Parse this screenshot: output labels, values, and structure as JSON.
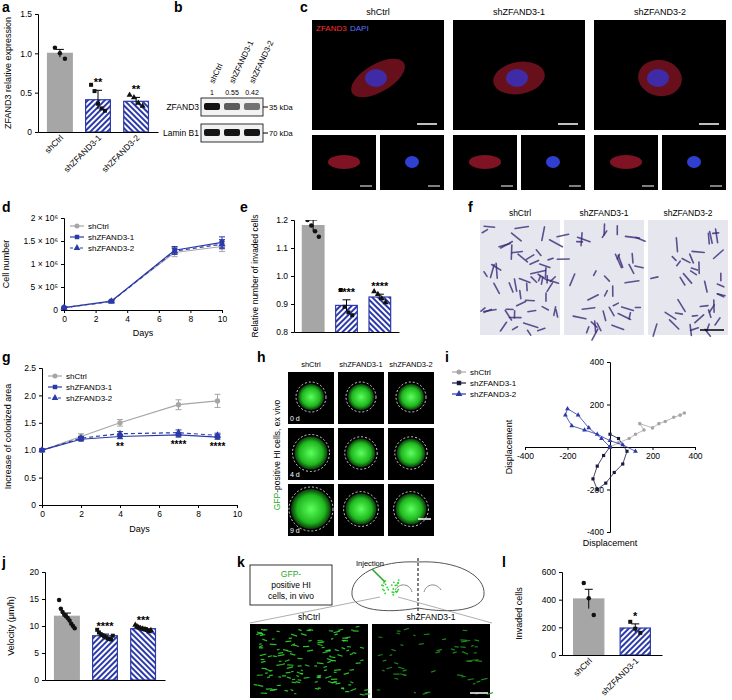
{
  "chart_data": [
    {
      "type": "bar",
      "title": "a",
      "ylabel": "ZFAND3 relative expression",
      "categories": [
        "shCtrl",
        "shZFAND3-1",
        "shZFAND3-2"
      ],
      "values": [
        1.0,
        0.41,
        0.39
      ],
      "errors": [
        0.05,
        0.12,
        0.05
      ],
      "points": [
        [
          1.07,
          1.0,
          0.93
        ],
        [
          0.6,
          0.52,
          0.36,
          0.3,
          0.27
        ],
        [
          0.47,
          0.44,
          0.37,
          0.33
        ]
      ],
      "annotations": [
        null,
        "**",
        "**"
      ],
      "colors": [
        "#a6a6a6",
        "#2b3aa8",
        "#2b3aa8"
      ],
      "ylim": [
        0,
        1.5
      ],
      "yticks": [
        0,
        0.5,
        {
          "value": 1,
          "label": "1.0"
        },
        1.5
      ]
    },
    {
      "type": "line",
      "title": "d",
      "xlabel": "Days",
      "ylabel": "Cell number",
      "x": [
        0,
        3,
        7,
        10
      ],
      "series": [
        {
          "name": "shCtrl",
          "color": "#a6a6a6",
          "marker": "circle",
          "line_style": "solid",
          "values": [
            50000,
            200000,
            1250000,
            1380000
          ],
          "errors": [
            10000,
            20000,
            90000,
            110000
          ]
        },
        {
          "name": "shZFAND3-1",
          "color": "#2b3aa8",
          "marker": "square",
          "line_style": "solid",
          "values": [
            50000,
            190000,
            1300000,
            1470000
          ],
          "errors": [
            10000,
            15000,
            80000,
            120000
          ]
        },
        {
          "name": "shZFAND3-2",
          "color": "#2b3aa8",
          "marker": "triangle",
          "line_style": "dashed",
          "values": [
            50000,
            185000,
            1280000,
            1430000
          ],
          "errors": [
            8000,
            15000,
            70000,
            100000
          ]
        }
      ],
      "xlim": [
        0,
        10
      ],
      "xticks": [
        0,
        2,
        4,
        6,
        8,
        10
      ],
      "ylim": [
        0,
        2000000
      ],
      "yticks": [
        0,
        {
          "value": 500000,
          "label": "5 × 10⁵"
        },
        {
          "value": 1000000,
          "label": "1 × 10⁶"
        },
        {
          "value": 1500000,
          "label": "1.5 × 10⁶"
        },
        {
          "value": 2000000,
          "label": "2 × 10⁶"
        }
      ],
      "legend": "upper left"
    },
    {
      "type": "bar",
      "title": "e",
      "ylabel": "Relative number of invaded cells",
      "categories": [
        null,
        null,
        null
      ],
      "values": [
        1.18,
        0.895,
        0.925
      ],
      "errors": [
        0.02,
        0.02,
        0.01
      ],
      "points": [
        [
          1.2,
          1.18,
          1.16,
          1.14
        ],
        [
          0.95,
          0.89,
          0.87,
          0.86
        ],
        [
          0.945,
          0.935,
          0.92,
          0.905
        ]
      ],
      "annotations": [
        null,
        "****",
        "****"
      ],
      "colors": [
        "#a6a6a6",
        "#2b3aa8",
        "#2b3aa8"
      ],
      "ylim": [
        0.8,
        1.2
      ],
      "yticks": [
        0.8,
        0.9,
        {
          "value": 1,
          "label": "1.0"
        },
        1.1,
        1.2
      ]
    },
    {
      "type": "line",
      "title": "g",
      "xlabel": "Days",
      "ylabel": "Increase of colonized area",
      "x": [
        0,
        2,
        4,
        7,
        9
      ],
      "series": [
        {
          "name": "shCtrl",
          "color": "#a6a6a6",
          "marker": "circle",
          "line_style": "solid",
          "values": [
            1,
            1.25,
            1.5,
            1.83,
            1.9
          ],
          "errors": [
            0.02,
            0.05,
            0.06,
            0.09,
            0.12
          ]
        },
        {
          "name": "shZFAND3-1",
          "color": "#2b3aa8",
          "marker": "square",
          "line_style": "solid",
          "values": [
            1,
            1.2,
            1.25,
            1.28,
            1.24
          ],
          "errors": [
            0.02,
            0.03,
            0.04,
            0.04,
            0.04
          ]
        },
        {
          "name": "shZFAND3-2",
          "color": "#2b3aa8",
          "marker": "triangle",
          "line_style": "dashed",
          "values": [
            1,
            1.22,
            1.3,
            1.32,
            1.27
          ],
          "errors": [
            0.02,
            0.03,
            0.04,
            0.05,
            0.04
          ]
        }
      ],
      "xlim": [
        0,
        10
      ],
      "xticks": [
        0,
        2,
        4,
        6,
        8,
        10
      ],
      "ylim": [
        0,
        2.5
      ],
      "yticks": [
        0,
        0.5,
        {
          "value": 1,
          "label": "1.0"
        },
        1.5,
        {
          "value": 2,
          "label": "2.0"
        },
        2.5
      ],
      "annotations": [
        {
          "x": 4,
          "text": "**"
        },
        {
          "x": 7,
          "text": "****"
        },
        {
          "x": 9,
          "text": "****"
        }
      ],
      "legend": "upper left"
    },
    {
      "type": "line",
      "title": "i",
      "xlabel": "Displacement",
      "ylabel": "Displacement",
      "series": [
        {
          "name": "shCtrl",
          "color": "#a6a6a6",
          "marker": "circle",
          "line_style": "solid",
          "x": [
            0,
            40,
            90,
            120,
            160,
            140,
            200,
            230,
            260,
            300,
            330,
            350
          ],
          "values": [
            0,
            20,
            40,
            60,
            80,
            110,
            90,
            110,
            120,
            140,
            150,
            160
          ]
        },
        {
          "name": "shZFAND3-1",
          "color": "#1a1a40",
          "marker": "square",
          "line_style": "solid",
          "x": [
            0,
            -30,
            -60,
            -80,
            -60,
            -20,
            20,
            60,
            80,
            40,
            0
          ],
          "values": [
            0,
            -40,
            -90,
            -150,
            -200,
            -170,
            -120,
            -80,
            -20,
            40,
            60
          ]
        },
        {
          "name": "shZFAND3-2",
          "color": "#2b3aa8",
          "marker": "triangle",
          "line_style": "solid",
          "x": [
            0,
            -40,
            -100,
            -150,
            -200,
            -210,
            -180,
            -120,
            -60,
            0,
            60,
            120
          ],
          "values": [
            0,
            40,
            90,
            150,
            180,
            150,
            100,
            80,
            60,
            30,
            10,
            -20
          ]
        }
      ],
      "xlim": [
        -400,
        400
      ],
      "xticks": [
        -400,
        -200,
        200,
        400
      ],
      "ylim": [
        -400,
        400
      ],
      "yticks": [
        -400,
        -200,
        200,
        400
      ],
      "legend": "upper left"
    },
    {
      "type": "bar",
      "title": "j",
      "ylabel": "Velocity (μm/h)",
      "categories": [
        null,
        null,
        null
      ],
      "values": [
        11.8,
        8.2,
        9.5
      ],
      "errors": [
        0.6,
        0.3,
        0.2
      ],
      "points": [
        [
          14.8,
          13.2,
          12.6,
          12.1,
          11.8,
          11.5,
          11.0,
          10.4,
          10.0,
          9.6
        ],
        [
          9.3,
          8.8,
          8.5,
          8.3,
          8.1,
          7.9,
          7.7,
          7.6,
          7.5,
          8.2
        ],
        [
          10.2,
          9.9,
          9.7,
          9.6,
          9.5,
          9.4,
          9.3,
          9.2,
          9.0,
          9.2
        ]
      ],
      "annotations": [
        null,
        "****",
        "***"
      ],
      "colors": [
        "#a6a6a6",
        "#2b3aa8",
        "#2b3aa8"
      ],
      "ylim": [
        0,
        20
      ],
      "yticks": [
        0,
        5,
        10,
        15,
        20
      ]
    },
    {
      "type": "bar",
      "title": "l",
      "ylabel": "Invaded cells",
      "categories": [
        "shCtrl",
        "shZFAND3-1"
      ],
      "values": [
        405,
        195
      ],
      "errors": [
        70,
        30
      ],
      "points": [
        [
          520,
          410,
          290
        ],
        [
          240,
          190,
          160
        ]
      ],
      "annotations": [
        null,
        "*"
      ],
      "colors": [
        "#a6a6a6",
        "#2b3aa8"
      ],
      "ylim": [
        0,
        600
      ],
      "yticks": [
        0,
        200,
        400,
        600
      ]
    }
  ],
  "blot": {
    "title": "b",
    "lanes": [
      "shCtrl",
      "shZFAND3-1",
      "shZFAND3-2"
    ],
    "quantification": [
      1,
      0.55,
      0.42
    ],
    "bands": [
      {
        "label": "ZFAND3",
        "size": "35 kDa"
      },
      {
        "label": "Lamin B1",
        "size": "70 kDa"
      }
    ]
  },
  "images": [
    {
      "title": "c",
      "columns": [
        "shCtrl",
        "shZFAND3-1",
        "shZFAND3-2"
      ],
      "channels": [
        "ZFAND3",
        "DAPI"
      ]
    },
    {
      "title": "f",
      "columns": [
        "shCtrl",
        "shZFAND3-1",
        "shZFAND3-2"
      ]
    },
    {
      "title": "h",
      "columns": [
        "shCtrl",
        "shZFAND3-1",
        "shZFAND3-2"
      ],
      "rows": [
        "0 d",
        "4 d",
        "9 d"
      ],
      "side_label": [
        "GFP",
        "-positive HI cells, ex vivo"
      ]
    },
    {
      "title": "k",
      "columns": [
        "shCtrl",
        "shZFAND3-1"
      ],
      "label": [
        "GFP-",
        "positive HI",
        "cells, in vivo"
      ],
      "annotation": "Injection"
    }
  ]
}
